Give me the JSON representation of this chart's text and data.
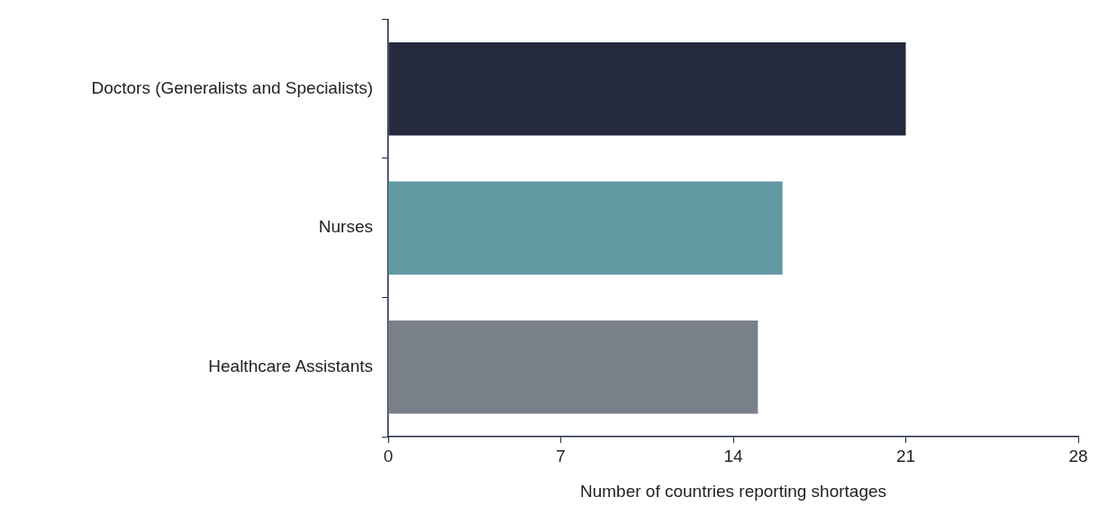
{
  "chart_data": {
    "type": "bar",
    "orientation": "horizontal",
    "xlabel": "Number of countries reporting shortages",
    "categories": [
      "Doctors (Generalists and Specialists)",
      "Nurses",
      "Healthcare Assistants"
    ],
    "values": [
      21,
      16,
      15
    ],
    "colors": [
      "#262a3e",
      "#6399a3",
      "#7a8089"
    ],
    "xlim": [
      0,
      28
    ],
    "xticks": [
      0,
      7,
      14,
      21,
      28
    ],
    "grid": false,
    "legend": false
  }
}
